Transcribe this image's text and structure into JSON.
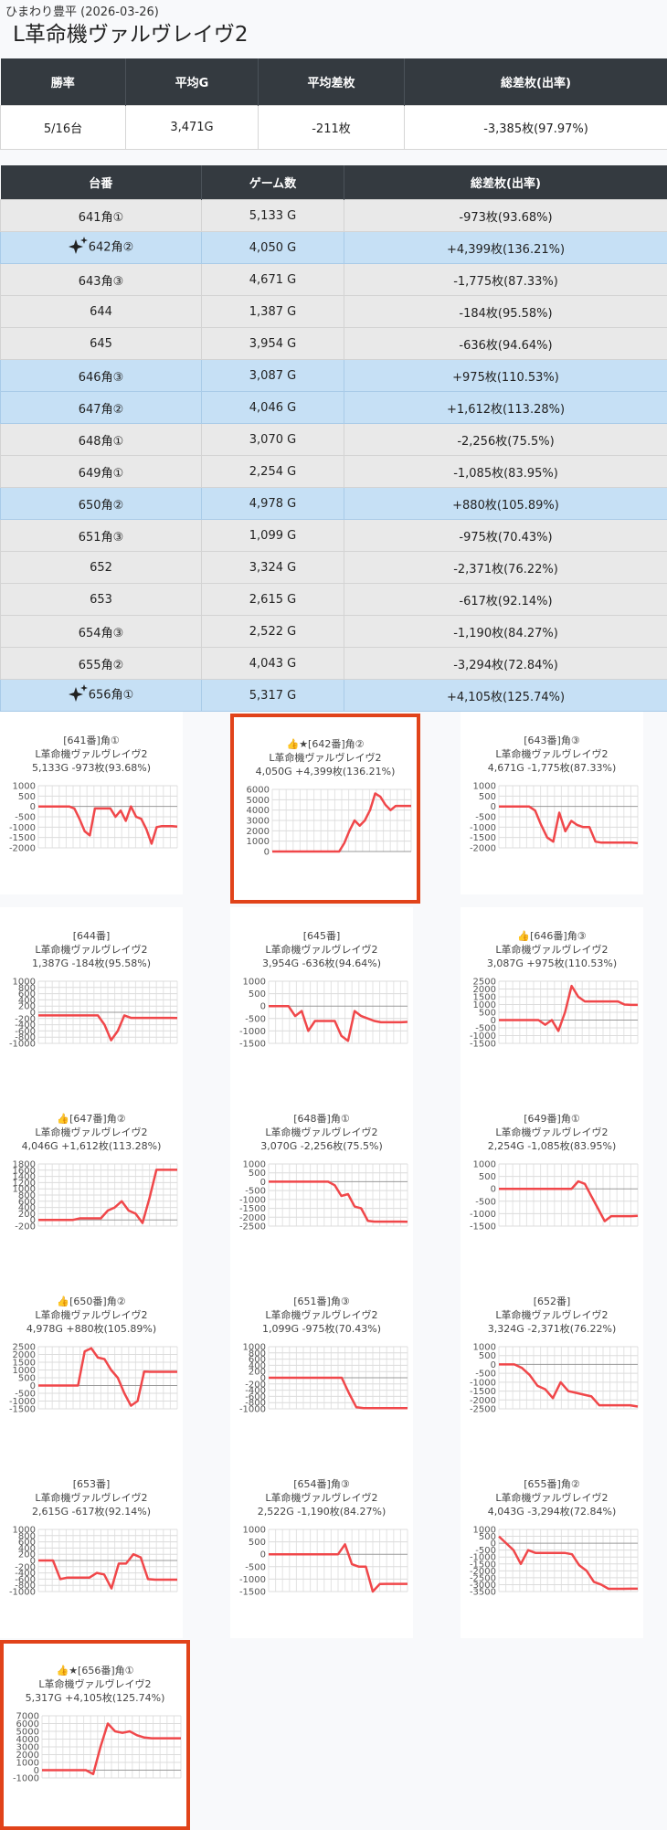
{
  "header": {
    "store_date": "ひまわり豊平 (2026-03-26)",
    "machine": "L革命機ヴァルヴレイヴ2"
  },
  "summary": {
    "headers": [
      "勝率",
      "平均G",
      "平均差枚",
      "総差枚(出率)"
    ],
    "values": [
      "5/16台",
      "3,471G",
      "-211枚",
      "-3,385枚(97.97%)"
    ]
  },
  "units": {
    "headers": [
      "台番",
      "ゲーム数",
      "総差枚(出率)"
    ],
    "rows": [
      {
        "name": "641角①",
        "games": "5,133 G",
        "diff": "-973枚(93.68%)",
        "sign": "minus",
        "star": false
      },
      {
        "name": "642角②",
        "games": "4,050 G",
        "diff": "+4,399枚(136.21%)",
        "sign": "plus",
        "star": true
      },
      {
        "name": "643角③",
        "games": "4,671 G",
        "diff": "-1,775枚(87.33%)",
        "sign": "minus",
        "star": false
      },
      {
        "name": "644",
        "games": "1,387 G",
        "diff": "-184枚(95.58%)",
        "sign": "minus",
        "star": false
      },
      {
        "name": "645",
        "games": "3,954 G",
        "diff": "-636枚(94.64%)",
        "sign": "minus",
        "star": false
      },
      {
        "name": "646角③",
        "games": "3,087 G",
        "diff": "+975枚(110.53%)",
        "sign": "plus",
        "star": false
      },
      {
        "name": "647角②",
        "games": "4,046 G",
        "diff": "+1,612枚(113.28%)",
        "sign": "plus",
        "star": false
      },
      {
        "name": "648角①",
        "games": "3,070 G",
        "diff": "-2,256枚(75.5%)",
        "sign": "minus",
        "star": false
      },
      {
        "name": "649角①",
        "games": "2,254 G",
        "diff": "-1,085枚(83.95%)",
        "sign": "minus",
        "star": false
      },
      {
        "name": "650角②",
        "games": "4,978 G",
        "diff": "+880枚(105.89%)",
        "sign": "plus",
        "star": false
      },
      {
        "name": "651角③",
        "games": "1,099 G",
        "diff": "-975枚(70.43%)",
        "sign": "minus",
        "star": false
      },
      {
        "name": "652",
        "games": "3,324 G",
        "diff": "-2,371枚(76.22%)",
        "sign": "minus",
        "star": false
      },
      {
        "name": "653",
        "games": "2,615 G",
        "diff": "-617枚(92.14%)",
        "sign": "minus",
        "star": false
      },
      {
        "name": "654角③",
        "games": "2,522 G",
        "diff": "-1,190枚(84.27%)",
        "sign": "minus",
        "star": false
      },
      {
        "name": "655角②",
        "games": "4,043 G",
        "diff": "-3,294枚(72.84%)",
        "sign": "minus",
        "star": false
      },
      {
        "name": "656角①",
        "games": "5,317 G",
        "diff": "+4,105枚(125.74%)",
        "sign": "plus",
        "star": true
      }
    ]
  },
  "colors": {
    "line": "#f0474a",
    "highlight_border": "#e1431a",
    "plus_row": "#c6e0f5",
    "minus_row": "#e9e9e9",
    "header_bg": "#343a40"
  },
  "chart_data": [
    {
      "type": "line",
      "title": "[641番]角①",
      "subtitle": "L革命機ヴァルヴレイヴ2",
      "caption": "5,133G -973枚(93.68%)",
      "ylim": [
        -2000,
        1000
      ],
      "yticks": [
        1000,
        500,
        0,
        -500,
        -1000,
        -1500,
        -2000
      ],
      "values": [
        0,
        0,
        0,
        0,
        0,
        0,
        0,
        -100,
        -600,
        -1200,
        -1400,
        -100,
        -100,
        -100,
        -100,
        -500,
        -200,
        -700,
        0,
        -500,
        -600,
        -1100,
        -1800,
        -1000,
        -950,
        -950,
        -950,
        -973
      ]
    },
    {
      "type": "line",
      "title": "👍★[642番]角②",
      "subtitle": "L革命機ヴァルヴレイヴ2",
      "caption": "4,050G +4,399枚(136.21%)",
      "ylim": [
        0,
        6000
      ],
      "yticks": [
        6000,
        5000,
        4000,
        3000,
        2000,
        1000,
        0
      ],
      "values": [
        0,
        0,
        0,
        0,
        0,
        0,
        0,
        0,
        0,
        0,
        0,
        0,
        0,
        0,
        800,
        2000,
        3000,
        2500,
        3000,
        4000,
        5600,
        5300,
        4500,
        4000,
        4400,
        4400,
        4400,
        4399
      ]
    },
    {
      "type": "line",
      "title": "[643番]角③",
      "subtitle": "L革命機ヴァルヴレイヴ2",
      "caption": "4,671G -1,775枚(87.33%)",
      "ylim": [
        -2000,
        1000
      ],
      "yticks": [
        1000,
        500,
        0,
        -500,
        -1000,
        -1500,
        -2000
      ],
      "values": [
        0,
        0,
        0,
        0,
        0,
        0,
        -200,
        -900,
        -1500,
        -1700,
        -300,
        -1200,
        -700,
        -900,
        -1000,
        -1000,
        -1700,
        -1750,
        -1750,
        -1750,
        -1750,
        -1750,
        -1750,
        -1775
      ]
    },
    {
      "type": "line",
      "title": "[644番]",
      "subtitle": "L革命機ヴァルヴレイヴ2",
      "caption": "1,387G -184枚(95.58%)",
      "ylim": [
        -1000,
        1000
      ],
      "yticks": [
        1000,
        800,
        600,
        400,
        200,
        0,
        -200,
        -400,
        -600,
        -800,
        -1000
      ],
      "values": [
        -100,
        -100,
        -100,
        -100,
        -100,
        -100,
        -100,
        -100,
        -100,
        -100,
        -400,
        -900,
        -600,
        -100,
        -180,
        -180,
        -180,
        -180,
        -180,
        -180,
        -180,
        -184
      ]
    },
    {
      "type": "line",
      "title": "[645番]",
      "subtitle": "L革命機ヴァルヴレイヴ2",
      "caption": "3,954G -636枚(94.64%)",
      "ylim": [
        -1500,
        1000
      ],
      "yticks": [
        1000,
        500,
        0,
        -500,
        -1000,
        -1500
      ],
      "values": [
        0,
        0,
        0,
        0,
        -400,
        -200,
        -1000,
        -600,
        -600,
        -600,
        -600,
        -1200,
        -1400,
        -200,
        -400,
        -500,
        -600,
        -650,
        -650,
        -650,
        -650,
        -636
      ]
    },
    {
      "type": "line",
      "title": "👍[646番]角③",
      "subtitle": "L革命機ヴァルヴレイヴ2",
      "caption": "3,087G +975枚(110.53%)",
      "ylim": [
        -1500,
        2500
      ],
      "yticks": [
        2500,
        2000,
        1500,
        1000,
        500,
        0,
        -500,
        -1000,
        -1500
      ],
      "values": [
        0,
        0,
        0,
        0,
        0,
        0,
        0,
        -300,
        0,
        -700,
        500,
        2200,
        1500,
        1200,
        1200,
        1200,
        1200,
        1200,
        1200,
        1000,
        975,
        975
      ]
    },
    {
      "type": "line",
      "title": "👍[647番]角②",
      "subtitle": "L革命機ヴァルヴレイヴ2",
      "caption": "4,046G +1,612枚(113.28%)",
      "ylim": [
        -200,
        1800
      ],
      "yticks": [
        1800,
        1600,
        1400,
        1200,
        1000,
        800,
        600,
        400,
        200,
        0,
        -200
      ],
      "values": [
        0,
        0,
        0,
        0,
        0,
        0,
        50,
        50,
        50,
        50,
        300,
        400,
        600,
        300,
        200,
        -100,
        700,
        1612,
        1612,
        1612,
        1612
      ]
    },
    {
      "type": "line",
      "title": "[648番]角①",
      "subtitle": "L革命機ヴァルヴレイヴ2",
      "caption": "3,070G -2,256枚(75.5%)",
      "ylim": [
        -2500,
        1000
      ],
      "yticks": [
        1000,
        500,
        0,
        -500,
        -1000,
        -1500,
        -2000,
        -2500
      ],
      "values": [
        0,
        0,
        0,
        0,
        0,
        0,
        0,
        0,
        0,
        0,
        -200,
        -800,
        -700,
        -1400,
        -1500,
        -2200,
        -2250,
        -2250,
        -2250,
        -2250,
        -2250,
        -2256
      ]
    },
    {
      "type": "line",
      "title": "[649番]角①",
      "subtitle": "L革命機ヴァルヴレイヴ2",
      "caption": "2,254G -1,085枚(83.95%)",
      "ylim": [
        -1500,
        1000
      ],
      "yticks": [
        1000,
        500,
        0,
        -500,
        -1000,
        -1500
      ],
      "values": [
        0,
        0,
        0,
        0,
        0,
        0,
        0,
        0,
        0,
        0,
        0,
        0,
        300,
        200,
        -300,
        -800,
        -1300,
        -1100,
        -1100,
        -1100,
        -1100,
        -1085
      ]
    },
    {
      "type": "line",
      "title": "👍[650番]角②",
      "subtitle": "L革命機ヴァルヴレイヴ2",
      "caption": "4,978G +880枚(105.89%)",
      "ylim": [
        -1500,
        2500
      ],
      "yticks": [
        2500,
        2000,
        1500,
        1000,
        500,
        0,
        -500,
        -1000,
        -1500
      ],
      "values": [
        0,
        0,
        0,
        0,
        0,
        0,
        0,
        2200,
        2400,
        1800,
        1700,
        1000,
        500,
        -500,
        -1300,
        -1000,
        900,
        880,
        880,
        880,
        880,
        880
      ]
    },
    {
      "type": "line",
      "title": "[651番]角③",
      "subtitle": "L革命機ヴァルヴレイヴ2",
      "caption": "1,099G -975枚(70.43%)",
      "ylim": [
        -1000,
        1000
      ],
      "yticks": [
        1000,
        800,
        600,
        400,
        200,
        0,
        -200,
        -400,
        -600,
        -800,
        -1000
      ],
      "values": [
        0,
        0,
        0,
        0,
        0,
        0,
        0,
        0,
        0,
        0,
        0,
        -500,
        -950,
        -975,
        -975,
        -975,
        -975,
        -975,
        -975,
        -975
      ]
    },
    {
      "type": "line",
      "title": "[652番]",
      "subtitle": "L革命機ヴァルヴレイヴ2",
      "caption": "3,324G -2,371枚(76.22%)",
      "ylim": [
        -2500,
        1000
      ],
      "yticks": [
        1000,
        500,
        0,
        -500,
        -1000,
        -1500,
        -2000,
        -2500
      ],
      "values": [
        0,
        0,
        0,
        -200,
        -600,
        -1200,
        -1400,
        -1900,
        -1000,
        -1500,
        -1600,
        -1700,
        -1800,
        -2300,
        -2300,
        -2300,
        -2300,
        -2300,
        -2371
      ]
    },
    {
      "type": "line",
      "title": "[653番]",
      "subtitle": "L革命機ヴァルヴレイヴ2",
      "caption": "2,615G -617枚(92.14%)",
      "ylim": [
        -1000,
        1000
      ],
      "yticks": [
        1000,
        800,
        600,
        400,
        200,
        0,
        -200,
        -400,
        -600,
        -800,
        -1000
      ],
      "values": [
        0,
        0,
        0,
        -600,
        -550,
        -550,
        -550,
        -550,
        -400,
        -450,
        -900,
        -100,
        -100,
        200,
        100,
        -600,
        -617,
        -617,
        -617,
        -617
      ]
    },
    {
      "type": "line",
      "title": "[654番]角③",
      "subtitle": "L革命機ヴァルヴレイヴ2",
      "caption": "2,522G -1,190枚(84.27%)",
      "ylim": [
        -1500,
        1000
      ],
      "yticks": [
        1000,
        500,
        0,
        -500,
        -1000,
        -1500
      ],
      "values": [
        0,
        0,
        0,
        0,
        0,
        0,
        0,
        0,
        0,
        0,
        0,
        400,
        -400,
        -500,
        -500,
        -1500,
        -1200,
        -1190,
        -1190,
        -1190,
        -1190
      ]
    },
    {
      "type": "line",
      "title": "[655番]角②",
      "subtitle": "L革命機ヴァルヴレイヴ2",
      "caption": "4,043G -3,294枚(72.84%)",
      "ylim": [
        -3500,
        1000
      ],
      "yticks": [
        1000,
        500,
        0,
        -500,
        -1000,
        -1500,
        -2000,
        -2500,
        -3000,
        -3500
      ],
      "values": [
        500,
        0,
        -500,
        -1500,
        -500,
        -700,
        -700,
        -700,
        -700,
        -700,
        -800,
        -1600,
        -2000,
        -2800,
        -3000,
        -3300,
        -3300,
        -3300,
        -3294,
        -3294
      ]
    },
    {
      "type": "line",
      "title": "👍★[656番]角①",
      "subtitle": "L革命機ヴァルヴレイヴ2",
      "caption": "5,317G +4,105枚(125.74%)",
      "ylim": [
        -1000,
        7000
      ],
      "yticks": [
        7000,
        6000,
        5000,
        4000,
        3000,
        2000,
        1000,
        0,
        -1000
      ],
      "values": [
        0,
        0,
        0,
        0,
        0,
        0,
        0,
        -500,
        3000,
        6000,
        5000,
        4800,
        5000,
        4500,
        4200,
        4100,
        4105,
        4105,
        4105,
        4105
      ]
    }
  ]
}
